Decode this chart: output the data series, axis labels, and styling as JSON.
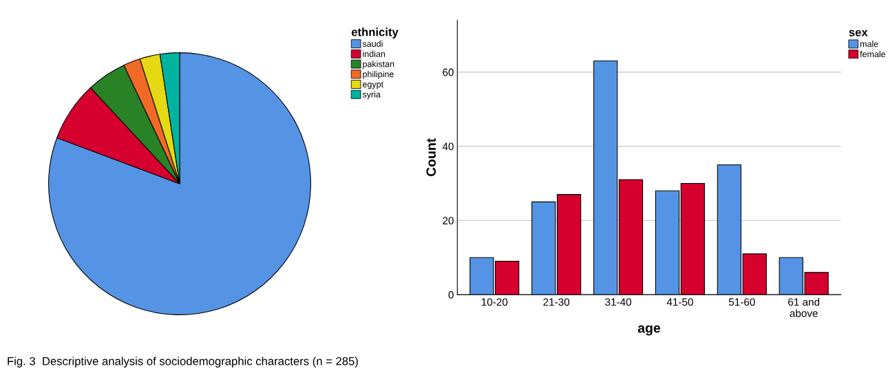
{
  "chart_data": [
    {
      "type": "pie",
      "legend_title": "ethnicity",
      "legend": "top right",
      "categories": [
        "saudi",
        "indian",
        "pakistan",
        "philipine",
        "egypt",
        "syria"
      ],
      "values": [
        80.7,
        7.4,
        4.9,
        2.1,
        2.5,
        2.4
      ],
      "colors": [
        "#5594e4",
        "#d5002e",
        "#2a8227",
        "#f06a25",
        "#e4d912",
        "#00b3a0"
      ],
      "annotations": [
        "Fig. 3  Descriptive analysis of sociodemographic characters (n = 285)"
      ]
    },
    {
      "type": "bar",
      "xlabel": "age",
      "ylabel": "Count",
      "legend_title": "sex",
      "legend": "top right",
      "grid": "y",
      "categories": [
        "10-20",
        "21-30",
        "31-40",
        "41-50",
        "51-60",
        "61 and\nabove"
      ],
      "series": [
        {
          "name": "male",
          "color": "#5594e4",
          "values": [
            10,
            25,
            63,
            28,
            35,
            10
          ]
        },
        {
          "name": "female",
          "color": "#d5002e",
          "values": [
            9,
            27,
            31,
            30,
            11,
            6
          ]
        }
      ],
      "ylim": [
        0,
        74
      ],
      "yticks": [
        0,
        20,
        40,
        60
      ]
    }
  ]
}
